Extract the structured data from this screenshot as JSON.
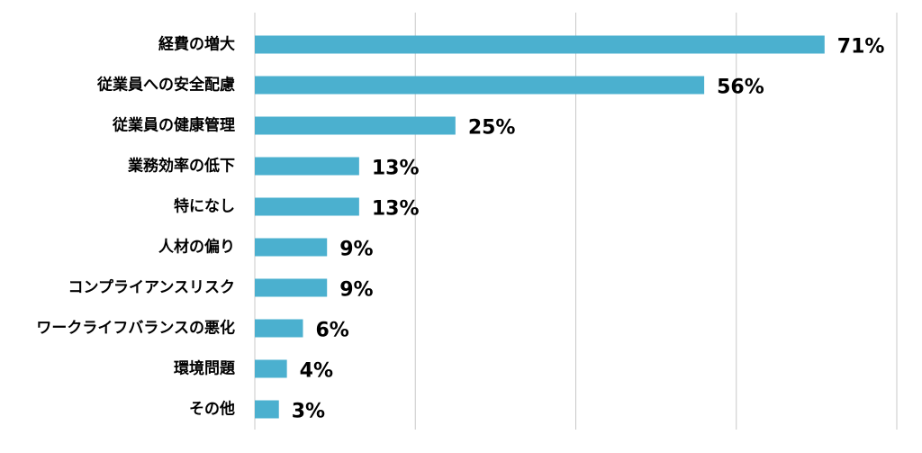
{
  "chart_data": {
    "type": "barh",
    "categories": [
      "経費の増大",
      "従業員への安全配慮",
      "従業員の健康管理",
      "業務効率の低下",
      "特になし",
      "人材の偏り",
      "コンプライアンスリスク",
      "ワークライフバランスの悪化",
      "環境問題",
      "その他"
    ],
    "values": [
      71,
      56,
      25,
      13,
      13,
      9,
      9,
      6,
      4,
      3
    ],
    "value_labels": [
      "71%",
      "56%",
      "25%",
      "13%",
      "13%",
      "9%",
      "9%",
      "6%",
      "4%",
      "3%"
    ],
    "color": "#4bb0cf",
    "xlim": [
      0,
      80
    ],
    "xticks": [
      0,
      20,
      40,
      60,
      80
    ],
    "grid": true
  }
}
